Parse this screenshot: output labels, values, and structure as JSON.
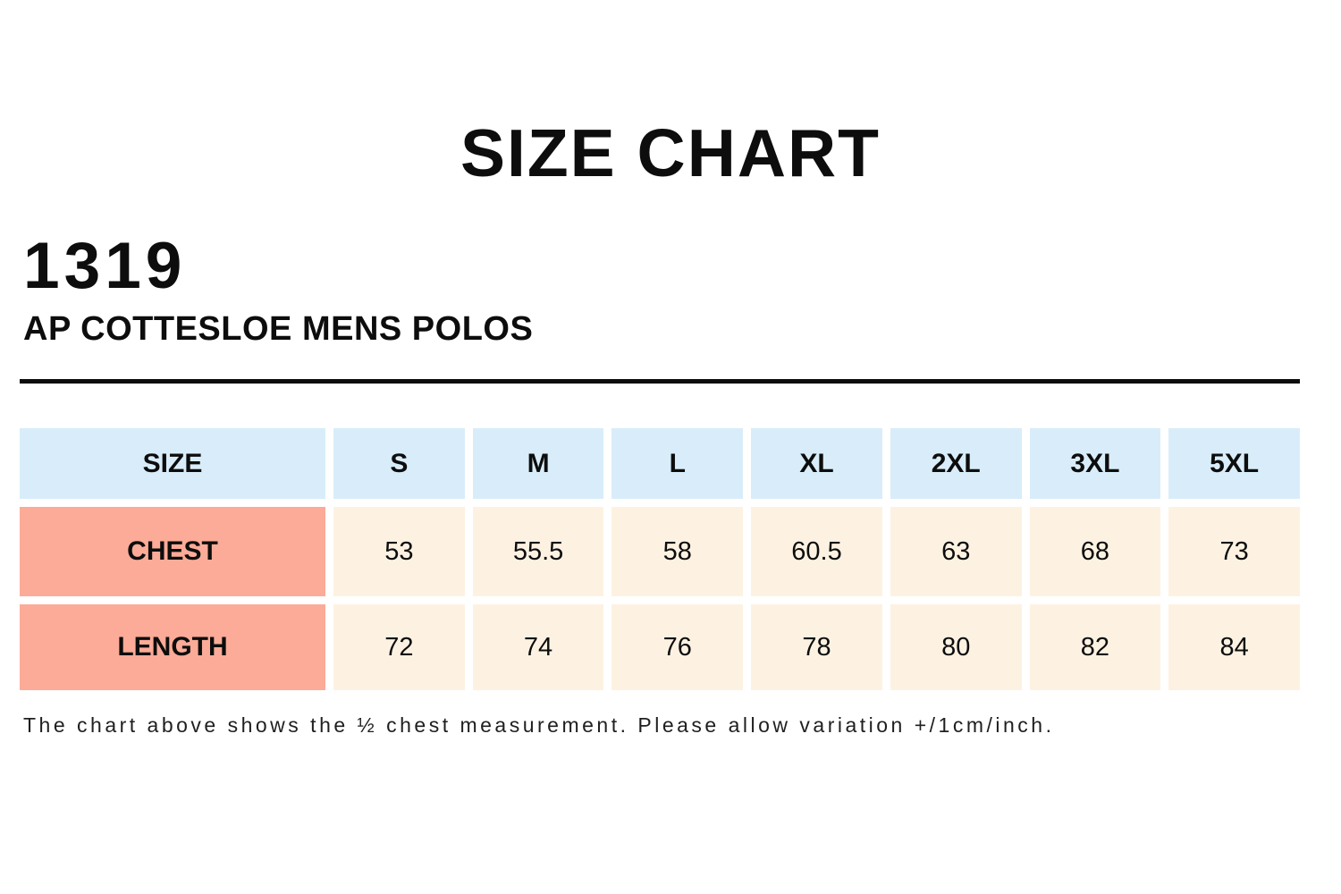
{
  "header": {
    "title": "SIZE CHART",
    "product_code": "1319",
    "product_name": "AP COTTESLOE MENS POLOS"
  },
  "size_table": {
    "columns": [
      "SIZE",
      "S",
      "M",
      "L",
      "XL",
      "2XL",
      "3XL",
      "5XL"
    ],
    "rows": [
      {
        "label": "CHEST",
        "values": [
          "53",
          "55.5",
          "58",
          "60.5",
          "63",
          "68",
          "73"
        ]
      },
      {
        "label": "LENGTH",
        "values": [
          "72",
          "74",
          "76",
          "78",
          "80",
          "82",
          "84"
        ]
      }
    ]
  },
  "footnote": "The chart above shows the ½ chest measurement. Please allow variation +/1cm/inch.",
  "colors": {
    "header_cell_bg": "#d8edf9",
    "label_cell_bg": "#fbab97",
    "value_cell_bg": "#fdf2e2",
    "text": "#0d0d0d"
  },
  "chart_data": {
    "type": "table",
    "title": "SIZE CHART",
    "product": "1319 AP COTTESLOE MENS POLOS",
    "columns": [
      "SIZE",
      "S",
      "M",
      "L",
      "XL",
      "2XL",
      "3XL",
      "5XL"
    ],
    "rows": [
      [
        "CHEST",
        53,
        55.5,
        58,
        60.5,
        63,
        68,
        73
      ],
      [
        "LENGTH",
        72,
        74,
        76,
        78,
        80,
        82,
        84
      ]
    ],
    "note": "The chart above shows the ½ chest measurement. Please allow variation +/1cm/inch."
  }
}
